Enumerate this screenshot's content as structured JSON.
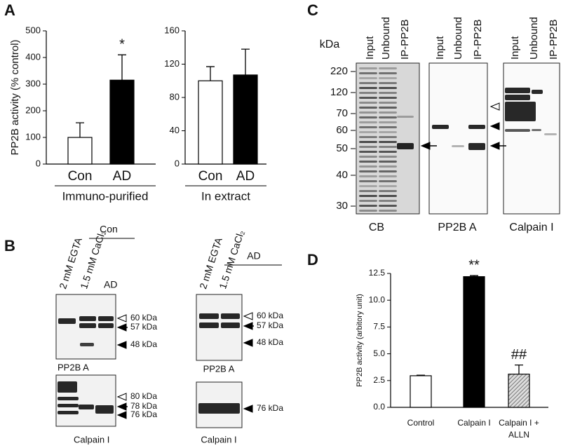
{
  "panel_labels": [
    "A",
    "B",
    "C",
    "D"
  ],
  "chart_data": [
    {
      "type": "bar",
      "ylabel": "PP2B activity (% control)",
      "xlabel": "Immuno-purified",
      "categories": [
        "Con",
        "AD"
      ],
      "values": [
        100,
        315
      ],
      "errors": [
        55,
        95
      ],
      "colors": [
        "#ffffff",
        "#000000"
      ],
      "annotations": [
        null,
        "*"
      ],
      "ylim": [
        0,
        500
      ],
      "yticks": [
        0,
        100,
        200,
        300,
        400,
        500
      ]
    },
    {
      "type": "bar",
      "xlabel": "In extract",
      "categories": [
        "Con",
        "AD"
      ],
      "values": [
        100,
        107
      ],
      "errors": [
        17,
        31
      ],
      "colors": [
        "#ffffff",
        "#000000"
      ],
      "ylim": [
        0,
        160
      ],
      "yticks": [
        0,
        40,
        80,
        120,
        160
      ]
    },
    {
      "type": "bar",
      "ylabel": "PP2B activity (arbitory unit)",
      "categories": [
        "Control",
        "Calpain I",
        [
          "Calpain I +",
          "ALLN"
        ]
      ],
      "values": [
        2.95,
        12.2,
        3.1
      ],
      "errors": [
        0.05,
        0.1,
        0.85
      ],
      "colors": [
        "#ffffff",
        "#000000",
        "#bbbbbb"
      ],
      "hatch": [
        false,
        false,
        true
      ],
      "annotations": [
        null,
        "**",
        "##"
      ],
      "ylim": [
        0,
        12.5
      ],
      "yticks": [
        {
          "value": 0,
          "label": "0.0"
        },
        2.5,
        {
          "value": 5,
          "label": "5.0"
        },
        7.5,
        {
          "value": 10,
          "label": "10.0"
        },
        12.5
      ]
    }
  ],
  "panel_b": {
    "con": {
      "group": "Con",
      "lanes": [
        "2 mM EGTA",
        "1.5 mM CaCl₂",
        "AD"
      ],
      "upper": {
        "markers": [
          "60 kDa",
          "57 kDa",
          "48 kDa"
        ],
        "name": "PP2B A"
      },
      "lower": {
        "markers": [
          "80 kDa",
          "78 kDa",
          "76 kDa"
        ],
        "name": "Calpain I"
      }
    },
    "ad": {
      "group": "AD",
      "lanes": [
        "2 mM EGTA",
        "1.5 mM CaCl₂"
      ],
      "upper": {
        "markers": [
          "60 kDa",
          "57 kDa",
          "48 kDa"
        ],
        "name": "PP2B A"
      },
      "lower": {
        "markers": [
          "76 kDa"
        ],
        "name": "Calpain I"
      }
    }
  },
  "panel_c": {
    "unit": "kDa",
    "ladder": [
      220,
      120,
      70,
      60,
      50,
      40,
      30
    ],
    "blots": [
      {
        "lanes": [
          "Input",
          "Unbound",
          "IP-PP2B"
        ],
        "name": "CB"
      },
      {
        "lanes": [
          "Input",
          "Unbound",
          "IP-PP2B"
        ],
        "name": "PP2B A"
      },
      {
        "lanes": [
          "Input",
          "Unbound",
          "IP-PP2B"
        ],
        "name": "Calpain I"
      }
    ]
  }
}
